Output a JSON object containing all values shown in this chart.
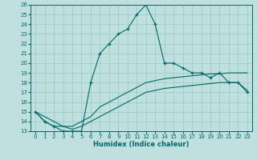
{
  "xlabel": "Humidex (Indice chaleur)",
  "bg_color": "#c0e0e0",
  "grid_color": "#98c8c8",
  "line_color": "#006868",
  "xlim": [
    -0.5,
    23.5
  ],
  "ylim": [
    13,
    26
  ],
  "xticks": [
    0,
    1,
    2,
    3,
    4,
    5,
    6,
    7,
    8,
    9,
    10,
    11,
    12,
    13,
    14,
    15,
    16,
    17,
    18,
    19,
    20,
    21,
    22,
    23
  ],
  "yticks": [
    13,
    14,
    15,
    16,
    17,
    18,
    19,
    20,
    21,
    22,
    23,
    24,
    25,
    26
  ],
  "main_x": [
    0,
    1,
    2,
    3,
    4,
    5,
    6,
    7,
    8,
    9,
    10,
    11,
    12,
    13,
    14,
    15,
    16,
    17,
    18,
    19,
    20,
    21,
    22,
    23
  ],
  "main_y": [
    15,
    14,
    13.5,
    13,
    13,
    13,
    18,
    21,
    22,
    23,
    23.5,
    25,
    26,
    24,
    20,
    20,
    19.5,
    19,
    19,
    18.5,
    19,
    18,
    18,
    17
  ],
  "line2_x": [
    0,
    1,
    2,
    3,
    4,
    5,
    6,
    7,
    8,
    9,
    10,
    11,
    12,
    13,
    14,
    15,
    16,
    17,
    18,
    19,
    20,
    21,
    22,
    23
  ],
  "line2_y": [
    15,
    14,
    13.5,
    13.5,
    13.5,
    14,
    14.5,
    15.5,
    16,
    16.5,
    17,
    17.5,
    18,
    18.2,
    18.4,
    18.5,
    18.6,
    18.7,
    18.8,
    18.9,
    18.9,
    19,
    19,
    19
  ],
  "line3_x": [
    0,
    1,
    2,
    3,
    4,
    5,
    6,
    7,
    8,
    9,
    10,
    11,
    12,
    13,
    14,
    15,
    16,
    17,
    18,
    19,
    20,
    21,
    22,
    23
  ],
  "line3_y": [
    15,
    14.5,
    14,
    13.5,
    13.2,
    13.5,
    14,
    14.5,
    15,
    15.5,
    16,
    16.5,
    17,
    17.2,
    17.4,
    17.5,
    17.6,
    17.7,
    17.8,
    17.9,
    18,
    18,
    18,
    17.2
  ]
}
